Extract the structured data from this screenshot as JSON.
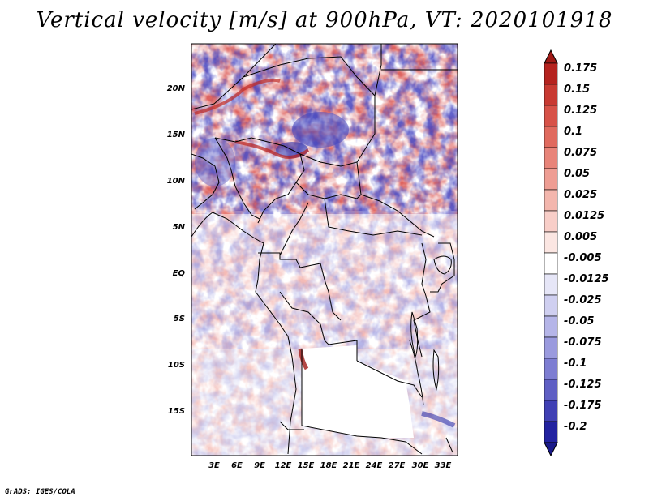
{
  "title": "Vertical velocity [m/s] at 900hPa, VT: 2020101918",
  "credit": "GrADS: IGES/COLA",
  "map": {
    "lat_labels": [
      "20N",
      "15N",
      "10N",
      "5N",
      "EQ",
      "5S",
      "10S",
      "15S"
    ],
    "lon_labels": [
      "3E",
      "6E",
      "9E",
      "12E",
      "15E",
      "18E",
      "21E",
      "24E",
      "27E",
      "30E",
      "33E"
    ],
    "lat_range": [
      -20,
      24
    ],
    "lon_range": [
      0,
      35
    ]
  },
  "colorbar": {
    "labels": [
      "0.175",
      "0.15",
      "0.125",
      "0.1",
      "0.075",
      "0.05",
      "0.025",
      "0.0125",
      "0.005",
      "-0.005",
      "-0.0125",
      "-0.025",
      "-0.05",
      "-0.075",
      "-0.1",
      "-0.125",
      "-0.175",
      "-0.2"
    ],
    "colors": [
      "#b5231f",
      "#c83a32",
      "#d75248",
      "#e06a5e",
      "#e88479",
      "#ee9d93",
      "#f3b6ad",
      "#f8cec8",
      "#fbe6e2",
      "#ffffff",
      "#e6e6f7",
      "#cfcff0",
      "#b5b5e8",
      "#9a9ade",
      "#7d7dd2",
      "#5f5fc4",
      "#4040b4",
      "#2222a0"
    ],
    "top_color": "#a01a16",
    "bottom_color": "#1a1a8a"
  }
}
